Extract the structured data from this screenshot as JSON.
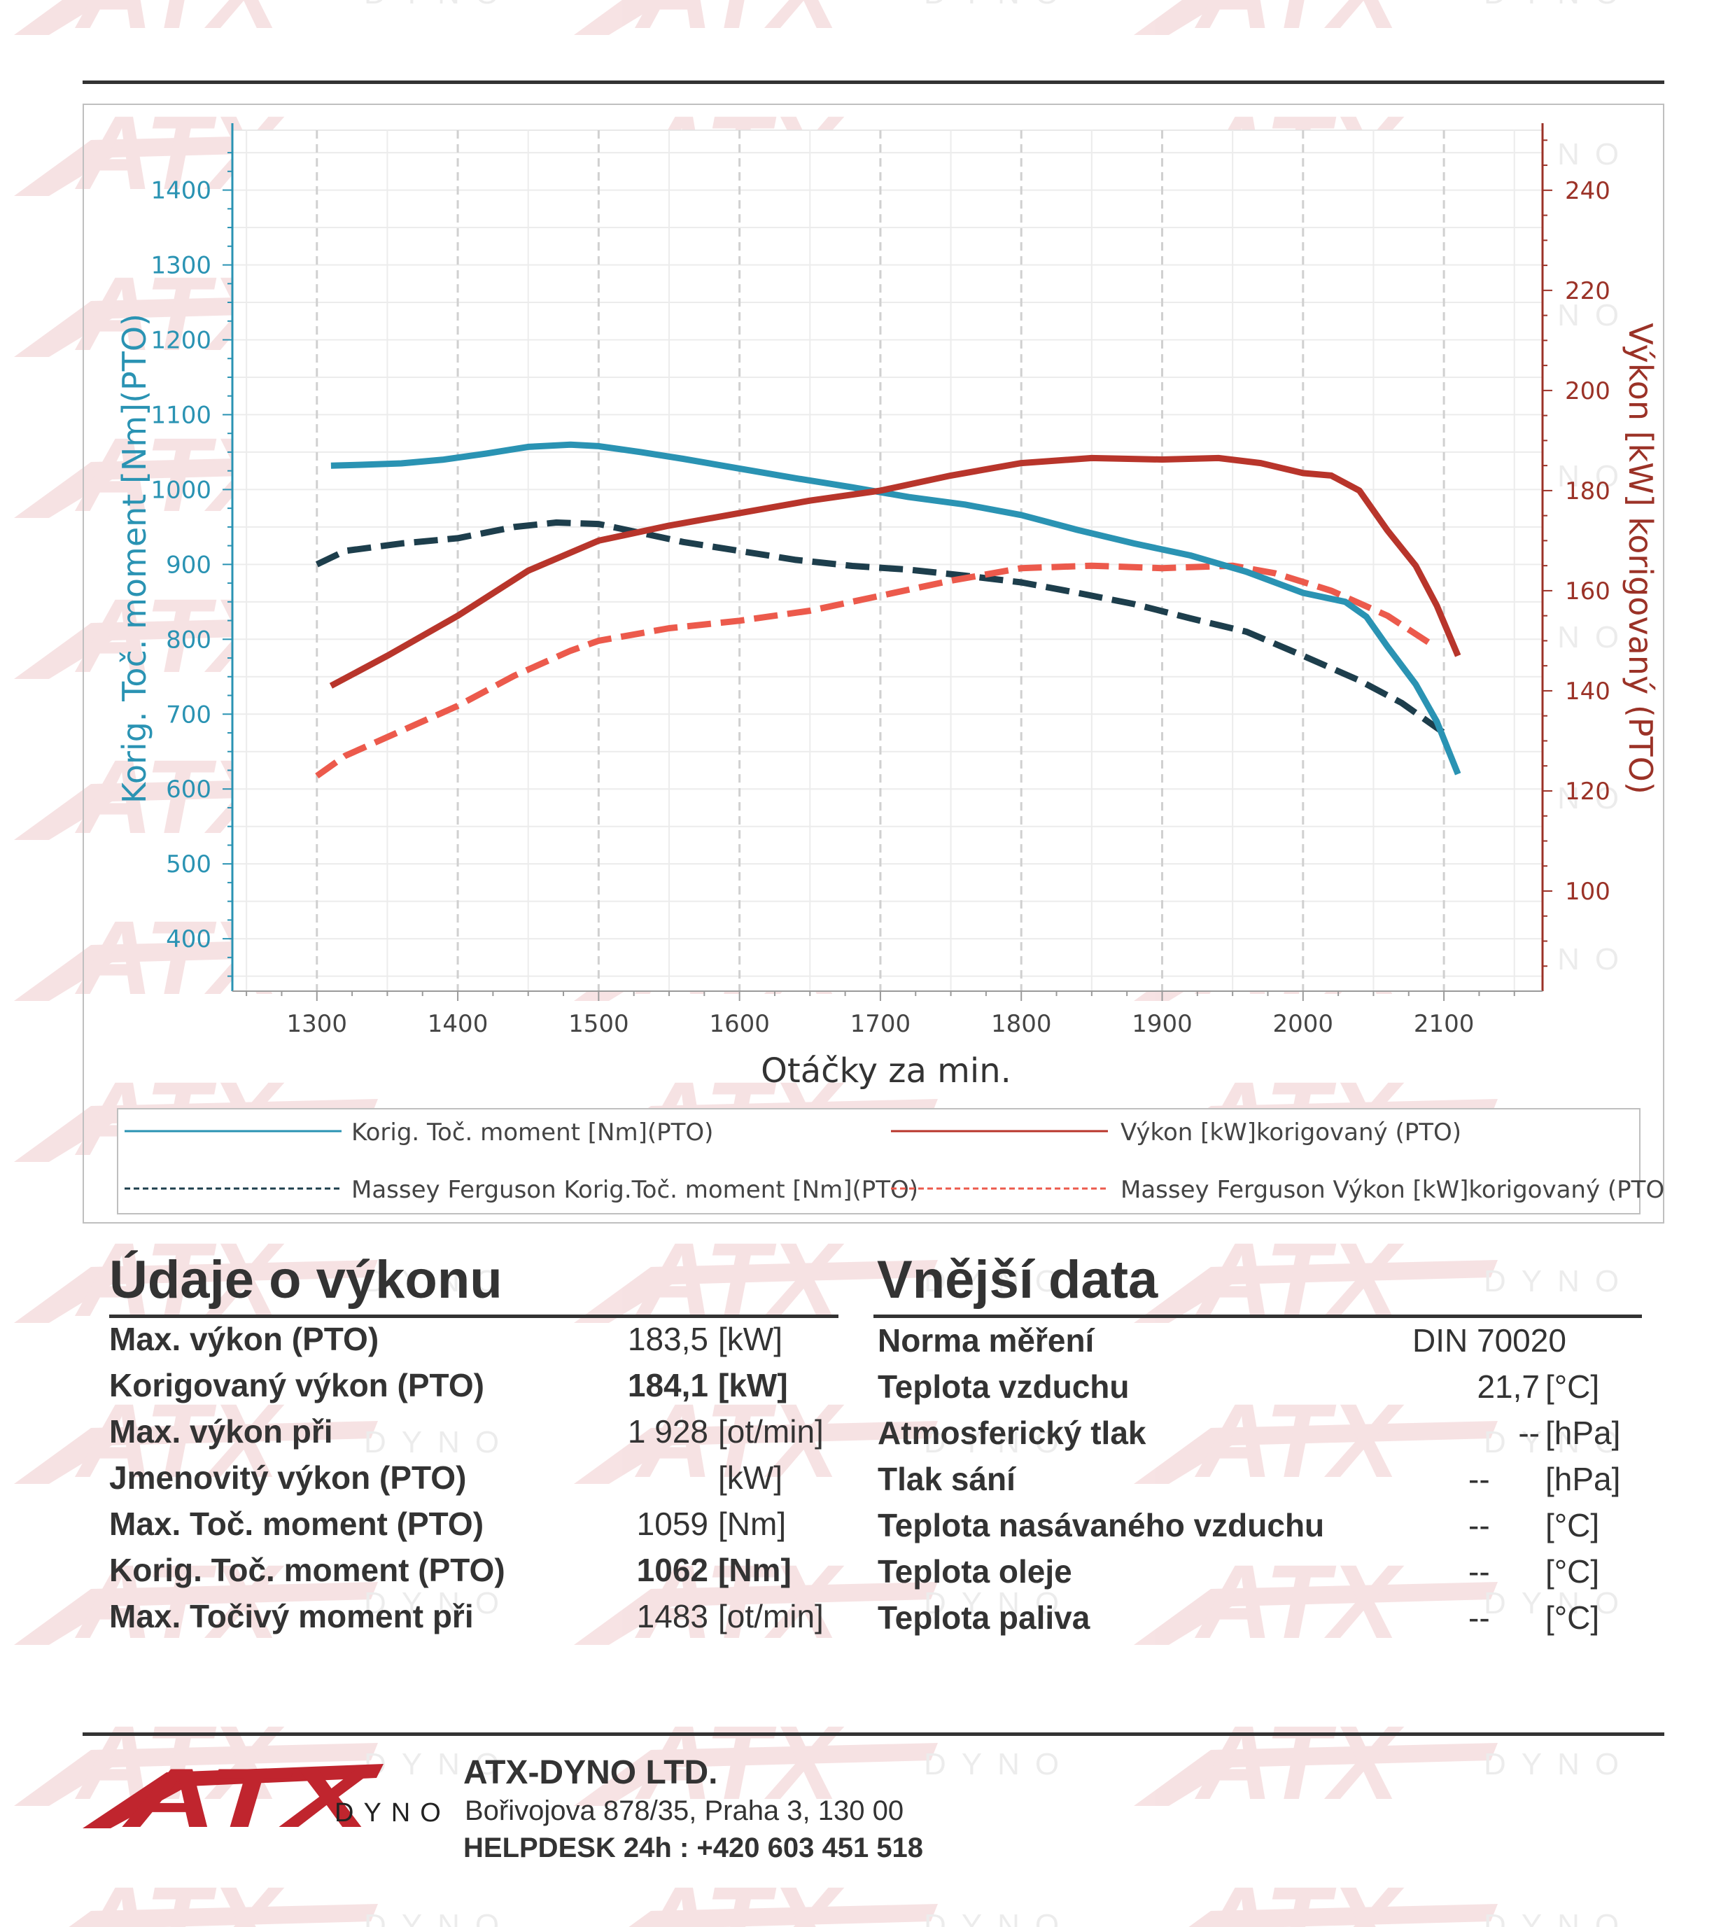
{
  "branding": {
    "watermark_logo": "ATX",
    "watermark_sub": "DYNO",
    "brand_red": "#c0252e"
  },
  "colors": {
    "torque": "#2a93b3",
    "power": "#b8352b",
    "mf_torque": "#1d3e4c",
    "mf_power": "#ec5a4c",
    "right_axis": "#9b3227",
    "left_axis": "#2a93b3"
  },
  "chart_data": {
    "type": "line",
    "xlabel": "Otáčky za min.",
    "ylabel_left": "Korig. Toč. moment [Nm](PTO)",
    "ylabel_right": "Výkon [kW] korigovaný (PTO)",
    "xlim": [
      1240,
      2170
    ],
    "ylim_left": [
      330,
      1480
    ],
    "ylim_right": [
      80,
      252
    ],
    "x_ticks": [
      1300,
      1400,
      1500,
      1600,
      1700,
      1800,
      1900,
      2000,
      2100
    ],
    "y_ticks_left": [
      400,
      500,
      600,
      700,
      800,
      900,
      1000,
      1100,
      1200,
      1300,
      1400
    ],
    "y_ticks_right": [
      100,
      120,
      140,
      160,
      180,
      200,
      220,
      240
    ],
    "grid": true,
    "legend_position": "bottom",
    "series": [
      {
        "name": "Korig. Toč. moment [Nm](PTO)",
        "axis": "left",
        "style": "solid",
        "x": [
          1310,
          1330,
          1360,
          1390,
          1420,
          1450,
          1480,
          1500,
          1530,
          1560,
          1600,
          1640,
          1680,
          1720,
          1760,
          1800,
          1840,
          1880,
          1920,
          1960,
          2000,
          2030,
          2045,
          2060,
          2080,
          2095,
          2110
        ],
        "y": [
          1032,
          1033,
          1035,
          1040,
          1048,
          1057,
          1060,
          1058,
          1050,
          1041,
          1028,
          1015,
          1003,
          990,
          980,
          966,
          946,
          928,
          912,
          890,
          862,
          850,
          830,
          790,
          740,
          690,
          620
        ]
      },
      {
        "name": "Výkon [kW]korigovaný (PTO)",
        "axis": "right",
        "style": "solid",
        "x": [
          1310,
          1350,
          1400,
          1450,
          1500,
          1550,
          1600,
          1650,
          1700,
          1750,
          1800,
          1850,
          1900,
          1940,
          1970,
          2000,
          2020,
          2040,
          2060,
          2080,
          2095,
          2110
        ],
        "y": [
          141,
          147,
          155,
          164,
          170,
          173,
          175.5,
          178,
          180,
          183,
          185.5,
          186.5,
          186.2,
          186.5,
          185.5,
          183.5,
          183,
          180,
          172,
          165,
          157,
          147
        ]
      },
      {
        "name": "Massey Ferguson Korig.Toč. moment [Nm](PTO)",
        "axis": "left",
        "style": "dashed",
        "x": [
          1300,
          1320,
          1360,
          1400,
          1440,
          1470,
          1500,
          1530,
          1560,
          1600,
          1640,
          1680,
          1720,
          1760,
          1800,
          1840,
          1880,
          1920,
          1960,
          2000,
          2040,
          2070,
          2100
        ],
        "y": [
          900,
          918,
          928,
          935,
          950,
          956,
          954,
          942,
          930,
          918,
          906,
          898,
          893,
          885,
          876,
          862,
          847,
          828,
          810,
          778,
          745,
          715,
          675
        ]
      },
      {
        "name": "Massey Ferguson Výkon [kW]korigovaný (PTO)",
        "axis": "right",
        "style": "dashed",
        "x": [
          1300,
          1320,
          1360,
          1400,
          1440,
          1480,
          1500,
          1550,
          1600,
          1650,
          1700,
          1750,
          1800,
          1850,
          1900,
          1950,
          1980,
          2020,
          2060,
          2090
        ],
        "y": [
          123,
          127,
          132,
          137,
          143,
          148,
          150,
          152.5,
          154,
          156,
          159,
          162,
          164.5,
          165,
          164.5,
          165,
          163.5,
          160,
          155,
          149.5
        ]
      }
    ]
  },
  "performance": {
    "title": "Údaje o výkonu",
    "rows": [
      {
        "label": "Max. výkon (PTO)",
        "value": "183,5",
        "unit": "[kW]",
        "bold": false
      },
      {
        "label": "Korigovaný výkon (PTO)",
        "value": "184,1",
        "unit": "[kW]",
        "bold": true
      },
      {
        "label": "Max. výkon při",
        "value": "1 928",
        "unit": "[ot/min]",
        "bold": false
      },
      {
        "label": "Jmenovitý výkon (PTO)",
        "value": "",
        "unit": "[kW]",
        "bold": false
      },
      {
        "label": "Max. Toč. moment (PTO)",
        "value": "1059",
        "unit": "[Nm]",
        "bold": false
      },
      {
        "label": "Korig. Toč. moment (PTO)",
        "value": "1062",
        "unit": "[Nm]",
        "bold": true
      },
      {
        "label": "Max. Točivý moment při",
        "value": "1483",
        "unit": "[ot/min]",
        "bold": false
      }
    ]
  },
  "external": {
    "title": "Vnější data",
    "rows": [
      {
        "label": "Norma měření",
        "value": "DIN 70020",
        "unit": ""
      },
      {
        "label": "Teplota vzduchu",
        "value": "21,7",
        "unit": "[°C]"
      },
      {
        "label": "Atmosferický tlak",
        "value": "--",
        "unit": "[hPa]"
      },
      {
        "label": "Tlak sání",
        "value": "--",
        "unit": "[hPa]"
      },
      {
        "label": "Teplota nasávaného vzduchu",
        "value": "--",
        "unit": "[°C]"
      },
      {
        "label": "Teplota oleje",
        "value": "--",
        "unit": "[°C]"
      },
      {
        "label": "Teplota paliva",
        "value": "--",
        "unit": "[°C]"
      }
    ]
  },
  "footer": {
    "logo_text": "ATX",
    "logo_sub": "DYNO",
    "company": "ATX-DYNO LTD.",
    "address": "Bořivojova 878/35, Praha 3, 130 00",
    "helpdesk": "HELPDESK 24h : +420 603 451 518"
  }
}
